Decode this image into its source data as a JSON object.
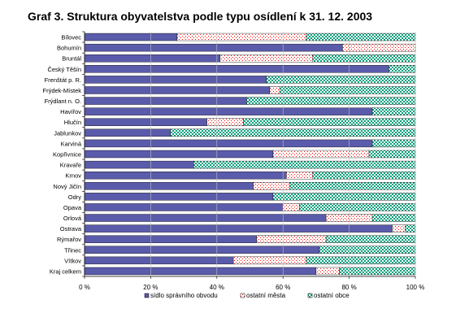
{
  "chart_data": {
    "type": "bar",
    "stacked": "percent",
    "orientation": "horizontal",
    "title": "Graf 3. Struktura obyvatelstva podle typu osídlení k 31. 12. 2003",
    "categories": [
      "Bílovec",
      "Bohumín",
      "Bruntál",
      "Český Těšín",
      "Frenštát p. R.",
      "Frýdek-Místek",
      "Frýdlant n. O.",
      "Havířov",
      "Hlučín",
      "Jablunkov",
      "Karviná",
      "Kopřivnice",
      "Kravaře",
      "Krnov",
      "Nový Jičín",
      "Odry",
      "Opava",
      "Orlová",
      "Ostrava",
      "Rýmařov",
      "Třinec",
      "Vítkov",
      "Kraj celkem"
    ],
    "series": [
      {
        "name": "sídlo správního obvodu",
        "values": [
          28,
          78,
          41,
          92,
          55,
          56,
          49,
          87,
          37,
          26,
          87,
          57,
          33,
          61,
          51,
          57,
          60,
          73,
          93,
          52,
          71,
          45,
          70
        ]
      },
      {
        "name": "ostatní města",
        "values": [
          39,
          22,
          28,
          0,
          0,
          3,
          0,
          0,
          11,
          0,
          0,
          29,
          0,
          8,
          11,
          0,
          5,
          14,
          4,
          21,
          0,
          22,
          7
        ]
      },
      {
        "name": "ostatní obce",
        "values": [
          33,
          0,
          31,
          8,
          45,
          41,
          51,
          13,
          52,
          74,
          13,
          14,
          67,
          31,
          38,
          43,
          35,
          13,
          3,
          27,
          29,
          33,
          23
        ]
      }
    ],
    "x_ticks": [
      "0 %",
      "20 %",
      "40 %",
      "60 %",
      "80 %",
      "100 %"
    ],
    "xlim": [
      0,
      100
    ],
    "legend_position": "bottom",
    "colors": {
      "sidlo": "#5b5bab",
      "mesta": "#ff0000",
      "obce": "#00a07a"
    }
  }
}
